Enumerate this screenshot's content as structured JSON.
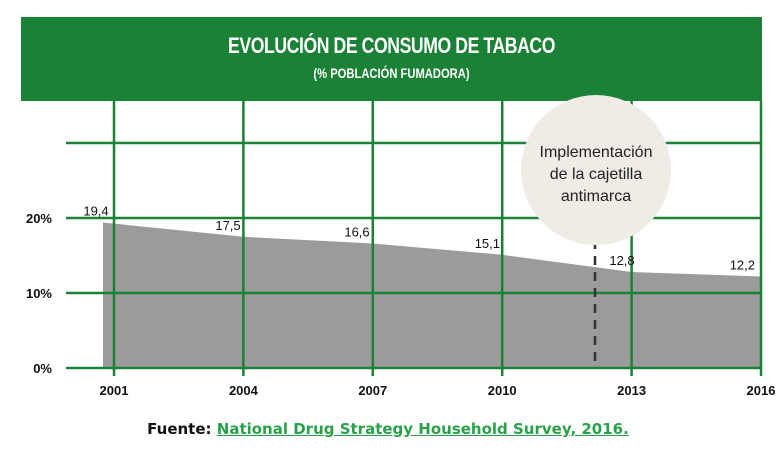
{
  "chart_data": {
    "type": "area",
    "title": "EVOLUCIÓN DE CONSUMO DE TABACO",
    "subtitle": "(% POBLACIÓN FUMADORA)",
    "xlabel": "",
    "ylabel": "",
    "x": [
      2001,
      2004,
      2007,
      2010,
      2013,
      2016
    ],
    "categories": [
      "2001",
      "2004",
      "2007",
      "2010",
      "2013",
      "2016"
    ],
    "series": [
      {
        "name": "% población fumadora",
        "values": [
          19.4,
          17.5,
          16.6,
          15.1,
          12.8,
          12.2
        ]
      }
    ],
    "data_labels": [
      "19,4",
      "17,5",
      "16,6",
      "15,1",
      "12,8",
      "12,2"
    ],
    "y_ticks": [
      {
        "value": 0,
        "label": "0%"
      },
      {
        "value": 10,
        "label": "10%"
      },
      {
        "value": 20,
        "label": "20%"
      }
    ],
    "ylim": [
      0,
      30
    ],
    "grid": true,
    "annotation": {
      "x": 2012,
      "lines": [
        "Implementación",
        "de la cajetilla",
        "antimarca"
      ],
      "style": "dashed-vertical-line-with-circle"
    },
    "colors": {
      "header": "#1b8137",
      "grid": "#1b8137",
      "area": "#9b9b9b",
      "annotation_circle": "#efece6",
      "link": "#2aa148"
    }
  },
  "source": {
    "prefix": "Fuente:",
    "link_text": "National Drug Strategy Household Survey, 2016."
  }
}
